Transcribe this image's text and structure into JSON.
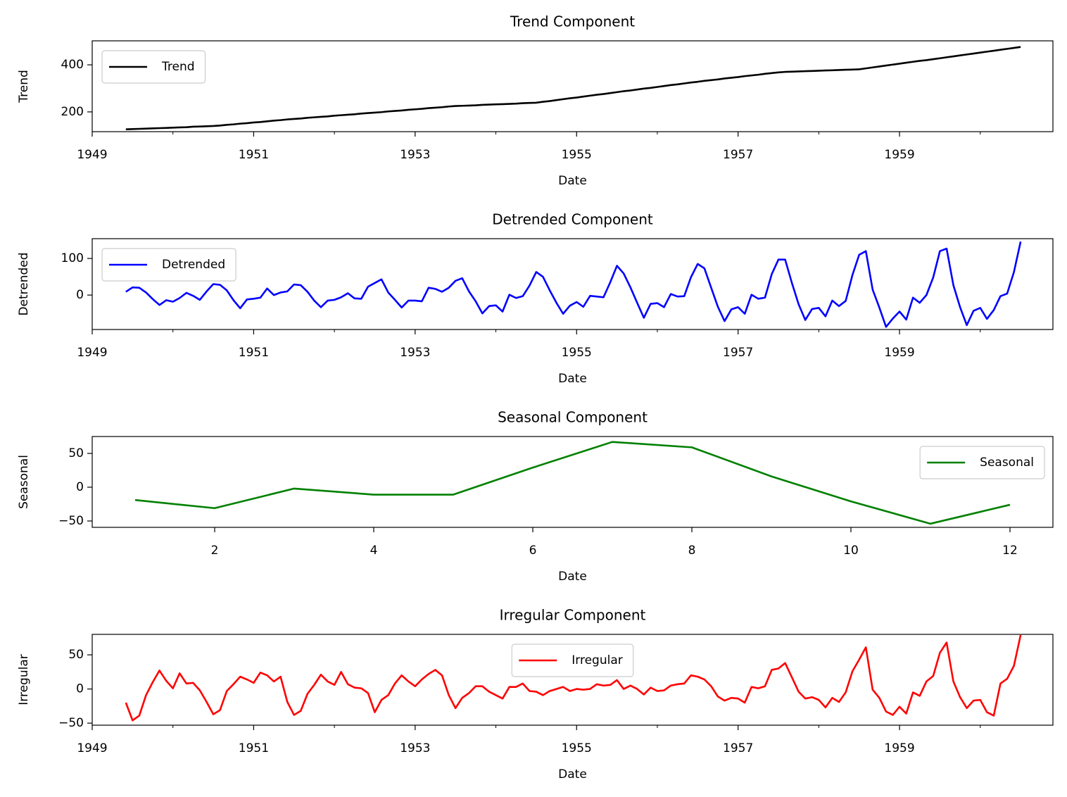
{
  "chart_data": [
    {
      "type": "line",
      "title": "Trend Component",
      "xlabel": "Date",
      "ylabel": "Trend",
      "x": [
        1949.417,
        1949.5,
        1949.583,
        1949.667,
        1949.75,
        1949.833,
        1949.917,
        1950,
        1950.083,
        1950.167,
        1950.25,
        1950.333,
        1950.417,
        1950.5,
        1950.583,
        1950.667,
        1950.75,
        1950.833,
        1950.917,
        1951,
        1951.083,
        1951.167,
        1951.25,
        1951.333,
        1951.417,
        1951.5,
        1951.583,
        1951.667,
        1951.75,
        1951.833,
        1951.917,
        1952,
        1952.083,
        1952.167,
        1952.25,
        1952.333,
        1952.417,
        1952.5,
        1952.583,
        1952.667,
        1952.75,
        1952.833,
        1952.917,
        1953,
        1953.083,
        1953.167,
        1953.25,
        1953.333,
        1953.417,
        1953.5,
        1953.583,
        1953.667,
        1953.75,
        1953.833,
        1953.917,
        1954,
        1954.083,
        1954.167,
        1954.25,
        1954.333,
        1954.417,
        1954.5,
        1954.583,
        1954.667,
        1954.75,
        1954.833,
        1954.917,
        1955,
        1955.083,
        1955.167,
        1955.25,
        1955.333,
        1955.417,
        1955.5,
        1955.583,
        1955.667,
        1955.75,
        1955.833,
        1955.917,
        1956,
        1956.083,
        1956.167,
        1956.25,
        1956.333,
        1956.417,
        1956.5,
        1956.583,
        1956.667,
        1956.75,
        1956.833,
        1956.917,
        1957,
        1957.083,
        1957.167,
        1957.25,
        1957.333,
        1957.417,
        1957.5,
        1957.583,
        1957.667,
        1957.75,
        1957.833,
        1957.917,
        1958,
        1958.083,
        1958.167,
        1958.25,
        1958.333,
        1958.417,
        1958.5,
        1958.583,
        1958.667,
        1958.75,
        1958.833,
        1958.917,
        1959,
        1959.083,
        1959.167,
        1959.25,
        1959.333,
        1959.417,
        1959.5,
        1959.583,
        1959.667,
        1959.75,
        1959.833,
        1959.917,
        1960,
        1960.083,
        1960.167,
        1960.25,
        1960.333,
        1960.417,
        1960.5
      ],
      "series": [
        {
          "name": "Trend",
          "color": "#000000",
          "values": [
            126,
            127,
            128,
            129,
            130,
            131,
            132,
            133,
            134,
            135,
            137,
            138,
            139,
            140,
            142,
            145,
            147,
            150,
            152,
            155,
            157,
            160,
            163,
            165,
            168,
            170,
            172,
            175,
            177,
            179,
            181,
            184,
            186,
            188,
            190,
            193,
            195,
            197,
            199,
            202,
            204,
            206,
            209,
            211,
            213,
            216,
            218,
            220,
            223,
            225,
            226,
            227,
            228,
            230,
            231,
            232,
            233,
            234,
            235,
            237,
            238,
            239,
            243,
            246,
            250,
            254,
            258,
            261,
            265,
            269,
            273,
            276,
            280,
            284,
            288,
            291,
            295,
            299,
            302,
            306,
            310,
            314,
            317,
            321,
            325,
            328,
            332,
            335,
            338,
            342,
            345,
            348,
            352,
            355,
            358,
            362,
            365,
            368,
            370,
            371,
            372,
            373,
            374,
            375,
            376,
            377,
            378,
            379,
            380,
            381,
            385,
            389,
            393,
            397,
            401,
            405,
            409,
            413,
            417,
            420,
            424,
            428,
            432,
            436,
            440,
            444,
            448,
            452,
            456,
            460,
            464,
            468,
            472,
            476
          ]
        }
      ],
      "xlim": [
        1949,
        1960.9
      ],
      "xticks": [
        1949,
        1951,
        1953,
        1955,
        1957,
        1959
      ],
      "xminorticks": [
        1950,
        1952,
        1954,
        1956,
        1958,
        1960
      ],
      "ylim": [
        116,
        502
      ],
      "yticks": [
        200,
        400
      ],
      "legend": "upper left"
    },
    {
      "type": "line",
      "title": "Detrended Component",
      "xlabel": "Date",
      "ylabel": "Detrended",
      "x": [
        1949.417,
        1949.5,
        1949.583,
        1949.667,
        1949.75,
        1949.833,
        1949.917,
        1950,
        1950.083,
        1950.167,
        1950.25,
        1950.333,
        1950.417,
        1950.5,
        1950.583,
        1950.667,
        1950.75,
        1950.833,
        1950.917,
        1951,
        1951.083,
        1951.167,
        1951.25,
        1951.333,
        1951.417,
        1951.5,
        1951.583,
        1951.667,
        1951.75,
        1951.833,
        1951.917,
        1952,
        1952.083,
        1952.167,
        1952.25,
        1952.333,
        1952.417,
        1952.5,
        1952.583,
        1952.667,
        1952.75,
        1952.833,
        1952.917,
        1953,
        1953.083,
        1953.167,
        1953.25,
        1953.333,
        1953.417,
        1953.5,
        1953.583,
        1953.667,
        1953.75,
        1953.833,
        1953.917,
        1954,
        1954.083,
        1954.167,
        1954.25,
        1954.333,
        1954.417,
        1954.5,
        1954.583,
        1954.667,
        1954.75,
        1954.833,
        1954.917,
        1955,
        1955.083,
        1955.167,
        1955.25,
        1955.333,
        1955.417,
        1955.5,
        1955.583,
        1955.667,
        1955.75,
        1955.833,
        1955.917,
        1956,
        1956.083,
        1956.167,
        1956.25,
        1956.333,
        1956.417,
        1956.5,
        1956.583,
        1956.667,
        1956.75,
        1956.833,
        1956.917,
        1957,
        1957.083,
        1957.167,
        1957.25,
        1957.333,
        1957.417,
        1957.5,
        1957.583,
        1957.667,
        1957.75,
        1957.833,
        1957.917,
        1958,
        1958.083,
        1958.167,
        1958.25,
        1958.333,
        1958.417,
        1958.5,
        1958.583,
        1958.667,
        1958.75,
        1958.833,
        1958.917,
        1959,
        1959.083,
        1959.167,
        1959.25,
        1959.333,
        1959.417,
        1959.5,
        1959.583,
        1959.667,
        1959.75,
        1959.833,
        1959.917,
        1960,
        1960.083,
        1960.167,
        1960.25,
        1960.333,
        1960.417,
        1960.5
      ],
      "series": [
        {
          "name": "Detrended",
          "color": "#0000ff",
          "values": [
            9,
            21,
            20,
            7,
            -11,
            -27,
            -14,
            -18,
            -8,
            6,
            -2,
            -13,
            10,
            30,
            28,
            13,
            -14,
            -36,
            -12,
            -10,
            -7,
            18,
            0,
            7,
            10,
            29,
            27,
            9,
            -15,
            -33,
            -15,
            -13,
            -6,
            5,
            -9,
            -10,
            23,
            33,
            43,
            7,
            -13,
            -34,
            -15,
            -15,
            -17,
            20,
            17,
            9,
            20,
            39,
            46,
            10,
            -17,
            -50,
            -30,
            -28,
            -45,
            1,
            -8,
            -3,
            26,
            63,
            50,
            13,
            -21,
            -51,
            -29,
            -19,
            -32,
            -2,
            -4,
            -6,
            35,
            80,
            59,
            21,
            -21,
            -62,
            -24,
            -22,
            -33,
            3,
            -4,
            -3,
            49,
            85,
            73,
            20,
            -32,
            -71,
            -39,
            -33,
            -51,
            1,
            -10,
            -7,
            57,
            97,
            97,
            33,
            -25,
            -68,
            -38,
            -35,
            -58,
            -15,
            -30,
            -16,
            55,
            110,
            120,
            15,
            -34,
            -87,
            -64,
            -45,
            -67,
            -7,
            -21,
            0,
            48,
            120,
            127,
            27,
            -33,
            -82,
            -43,
            -35,
            -65,
            -41,
            -3,
            4,
            63,
            146
          ]
        }
      ],
      "xlim": [
        1949,
        1960.9
      ],
      "xticks": [
        1949,
        1951,
        1953,
        1955,
        1957,
        1959
      ],
      "xminorticks": [
        1950,
        1952,
        1954,
        1956,
        1958,
        1960
      ],
      "ylim": [
        -94,
        154
      ],
      "yticks": [
        0,
        100
      ],
      "legend": "upper left"
    },
    {
      "type": "line",
      "title": "Seasonal Component",
      "xlabel": "Date",
      "ylabel": "Seasonal",
      "x": [
        1,
        2,
        3,
        4,
        5,
        6,
        7,
        8,
        9,
        10,
        11,
        12
      ],
      "series": [
        {
          "name": "Seasonal",
          "color": "#008000",
          "values": [
            -19,
            -31,
            -2,
            -11,
            -11,
            29,
            67,
            59,
            16,
            -21,
            -54,
            -26
          ]
        }
      ],
      "xlim": [
        0.46,
        12.54
      ],
      "xticks": [
        2,
        4,
        6,
        8,
        10,
        12
      ],
      "ylim": [
        -59.4,
        75
      ],
      "yticks": [
        {
          "value": -50,
          "label": "−50"
        },
        0,
        50
      ],
      "legend": "upper right"
    },
    {
      "type": "line",
      "title": "Irregular Component",
      "xlabel": "Date",
      "ylabel": "Irregular",
      "x": [
        1949.417,
        1949.5,
        1949.583,
        1949.667,
        1949.75,
        1949.833,
        1949.917,
        1950,
        1950.083,
        1950.167,
        1950.25,
        1950.333,
        1950.417,
        1950.5,
        1950.583,
        1950.667,
        1950.75,
        1950.833,
        1950.917,
        1951,
        1951.083,
        1951.167,
        1951.25,
        1951.333,
        1951.417,
        1951.5,
        1951.583,
        1951.667,
        1951.75,
        1951.833,
        1951.917,
        1952,
        1952.083,
        1952.167,
        1952.25,
        1952.333,
        1952.417,
        1952.5,
        1952.583,
        1952.667,
        1952.75,
        1952.833,
        1952.917,
        1953,
        1953.083,
        1953.167,
        1953.25,
        1953.333,
        1953.417,
        1953.5,
        1953.583,
        1953.667,
        1953.75,
        1953.833,
        1953.917,
        1954,
        1954.083,
        1954.167,
        1954.25,
        1954.333,
        1954.417,
        1954.5,
        1954.583,
        1954.667,
        1954.75,
        1954.833,
        1954.917,
        1955,
        1955.083,
        1955.167,
        1955.25,
        1955.333,
        1955.417,
        1955.5,
        1955.583,
        1955.667,
        1955.75,
        1955.833,
        1955.917,
        1956,
        1956.083,
        1956.167,
        1956.25,
        1956.333,
        1956.417,
        1956.5,
        1956.583,
        1956.667,
        1956.75,
        1956.833,
        1956.917,
        1957,
        1957.083,
        1957.167,
        1957.25,
        1957.333,
        1957.417,
        1957.5,
        1957.583,
        1957.667,
        1957.75,
        1957.833,
        1957.917,
        1958,
        1958.083,
        1958.167,
        1958.25,
        1958.333,
        1958.417,
        1958.5,
        1958.583,
        1958.667,
        1958.75,
        1958.833,
        1958.917,
        1959,
        1959.083,
        1959.167,
        1959.25,
        1959.333,
        1959.417,
        1959.5,
        1959.583,
        1959.667,
        1959.75,
        1959.833,
        1959.917,
        1960,
        1960.083,
        1960.167,
        1960.25,
        1960.333,
        1960.417,
        1960.5
      ],
      "series": [
        {
          "name": "Irregular",
          "color": "#ff0000",
          "values": [
            -20,
            -46,
            -39,
            -9,
            10,
            27,
            12,
            1,
            23,
            8,
            9,
            -2,
            -19,
            -37,
            -31,
            -3,
            7,
            18,
            14,
            9,
            24,
            20,
            11,
            18,
            -19,
            -38,
            -32,
            -7,
            6,
            21,
            11,
            6,
            25,
            7,
            2,
            1,
            -6,
            -34,
            -16,
            -9,
            8,
            20,
            11,
            4,
            14,
            22,
            28,
            20,
            -9,
            -28,
            -13,
            -6,
            4,
            4,
            -4,
            -9,
            -14,
            3,
            3,
            8,
            -3,
            -4,
            -9,
            -3,
            0,
            3,
            -3,
            0,
            -1,
            0,
            7,
            5,
            6,
            13,
            0,
            5,
            0,
            -8,
            2,
            -3,
            -2,
            5,
            7,
            8,
            20,
            18,
            14,
            4,
            -11,
            -17,
            -13,
            -14,
            -20,
            3,
            1,
            4,
            28,
            30,
            38,
            17,
            -4,
            -14,
            -12,
            -16,
            -27,
            -13,
            -19,
            -5,
            26,
            43,
            61,
            -1,
            -13,
            -33,
            -38,
            -26,
            -36,
            -5,
            -10,
            11,
            19,
            53,
            68,
            11,
            -12,
            -28,
            -17,
            -16,
            -34,
            -39,
            8,
            15,
            34,
            79
          ]
        }
      ],
      "xlim": [
        1949,
        1960.9
      ],
      "xticks": [
        1949,
        1951,
        1953,
        1955,
        1957,
        1959
      ],
      "xminorticks": [
        1950,
        1952,
        1954,
        1956,
        1958,
        1960
      ],
      "ylim": [
        -53,
        80
      ],
      "yticks": [
        {
          "value": -50,
          "label": "−50"
        },
        0,
        50
      ],
      "legend": "upper center"
    }
  ]
}
